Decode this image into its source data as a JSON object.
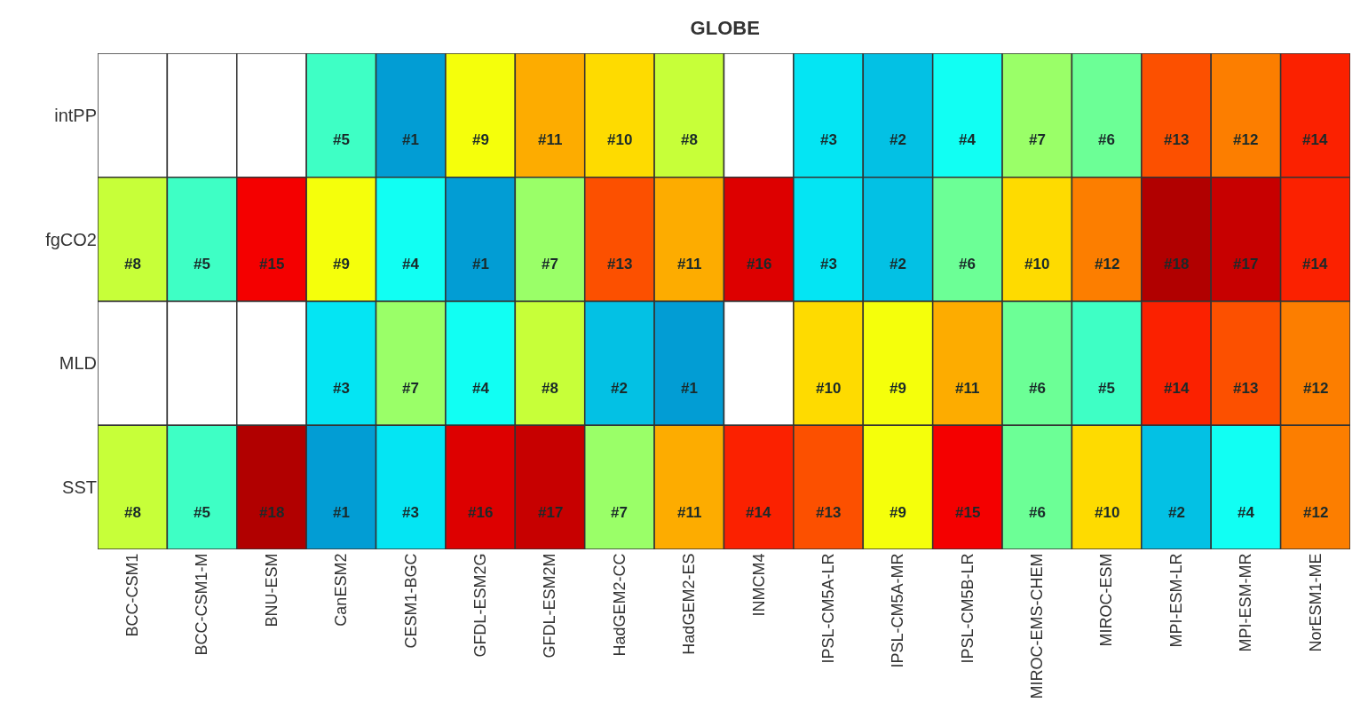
{
  "chart_data": {
    "type": "heatmap",
    "title": "GLOBE",
    "categories": [
      "BCC-CSM1",
      "BCC-CSM1-M",
      "BNU-ESM",
      "CanESM2",
      "CESM1-BGC",
      "GFDL-ESM2G",
      "GFDL-ESM2M",
      "HadGEM2-CC",
      "HadGEM2-ES",
      "INMCM4",
      "IPSL-CM5A-LR",
      "IPSL-CM5A-MR",
      "IPSL-CM5B-LR",
      "MIROC-EMS-CHEM",
      "MIROC-ESM",
      "MPI-ESM-LR",
      "MPI-ESM-MR",
      "NorESM1-ME"
    ],
    "y_categories": [
      "intPP",
      "fgCO2",
      "MLD",
      "SST"
    ],
    "cells": [
      [
        null,
        null,
        null,
        5,
        1,
        9,
        11,
        10,
        8,
        null,
        3,
        2,
        4,
        7,
        6,
        13,
        12,
        14
      ],
      [
        8,
        5,
        15,
        9,
        4,
        1,
        7,
        13,
        11,
        16,
        3,
        2,
        6,
        10,
        12,
        18,
        17,
        14
      ],
      [
        null,
        null,
        null,
        3,
        7,
        4,
        8,
        2,
        1,
        null,
        10,
        9,
        11,
        6,
        5,
        14,
        13,
        12
      ],
      [
        8,
        5,
        18,
        1,
        3,
        16,
        17,
        7,
        11,
        14,
        13,
        9,
        15,
        6,
        10,
        2,
        4,
        12
      ]
    ],
    "cell_labels": [
      [
        null,
        null,
        null,
        "#5",
        "#1",
        "#9",
        "#11",
        "#10",
        "#8",
        null,
        "#3",
        "#2",
        "#4",
        "#7",
        "#6",
        "#13",
        "#12",
        "#14"
      ],
      [
        "#8",
        "#5",
        "#15",
        "#9",
        "#4",
        "#1",
        "#7",
        "#13",
        "#11",
        "#16",
        "#3",
        "#2",
        "#6",
        "#10",
        "#12",
        "#18",
        "#17",
        "#14"
      ],
      [
        null,
        null,
        null,
        "#3",
        "#7",
        "#4",
        "#8",
        "#2",
        "#1",
        null,
        "#10",
        "#9",
        "#11",
        "#6",
        "#5",
        "#14",
        "#13",
        "#12"
      ],
      [
        "#8",
        "#5",
        "#18",
        "#1",
        "#3",
        "#16",
        "#17",
        "#7",
        "#11",
        "#14",
        "#13",
        "#9",
        "#15",
        "#6",
        "#10",
        "#2",
        "#4",
        "#12"
      ]
    ]
  }
}
